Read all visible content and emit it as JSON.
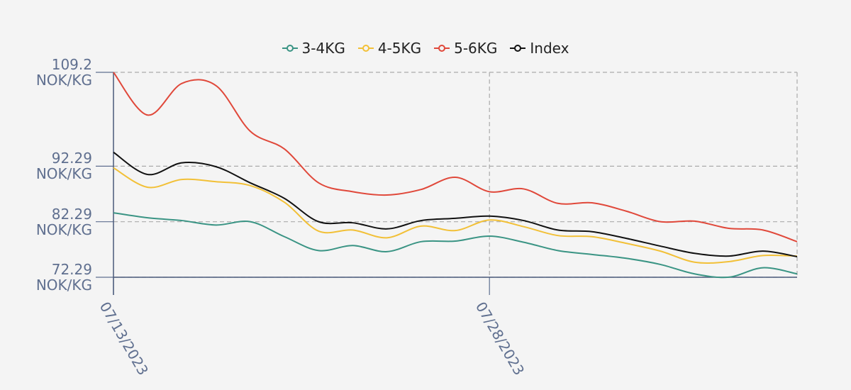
{
  "chart_data": {
    "type": "line",
    "categories": [
      "07/13/2023",
      null,
      null,
      null,
      null,
      null,
      null,
      null,
      null,
      null,
      null,
      "07/28/2023",
      null,
      null,
      null,
      null,
      null,
      null,
      null,
      null,
      null
    ],
    "series": [
      {
        "name": "3-4KG",
        "color": "#3a9484",
        "values": [
          83.9,
          83.0,
          82.5,
          81.7,
          82.3,
          79.6,
          77.1,
          78.0,
          76.9,
          78.7,
          78.8,
          79.7,
          78.6,
          77.1,
          76.4,
          75.7,
          74.6,
          72.9,
          72.3,
          74.0,
          72.9
        ]
      },
      {
        "name": "4-5KG",
        "color": "#f2c037",
        "values": [
          92.0,
          88.5,
          89.9,
          89.5,
          88.8,
          85.8,
          80.6,
          80.8,
          79.4,
          81.5,
          80.7,
          82.6,
          81.4,
          79.8,
          79.6,
          78.4,
          77.0,
          75.0,
          75.1,
          76.2,
          76.1
        ]
      },
      {
        "name": "5-6KG",
        "color": "#e0483a",
        "values": [
          109.2,
          101.5,
          107.2,
          106.8,
          98.6,
          95.4,
          89.3,
          87.7,
          87.1,
          88.1,
          90.3,
          87.7,
          88.2,
          85.6,
          85.7,
          84.2,
          82.3,
          82.4,
          81.1,
          80.8,
          78.7
        ]
      },
      {
        "name": "Index",
        "color": "#111111",
        "values": [
          94.8,
          90.8,
          92.9,
          92.2,
          89.3,
          86.5,
          82.3,
          82.1,
          81.0,
          82.5,
          82.9,
          83.3,
          82.5,
          80.8,
          80.5,
          79.3,
          77.9,
          76.6,
          76.1,
          77.0,
          76.0
        ]
      }
    ],
    "ylim": [
      72.29,
      109.2
    ],
    "yticks": [
      {
        "value": 72.29,
        "label": "72.29 NOK/KG"
      },
      {
        "value": 82.29,
        "label": "82.29 NOK/KG"
      },
      {
        "value": 92.29,
        "label": "92.29 NOK/KG"
      },
      {
        "value": 109.2,
        "label": "109.2 NOK/KG"
      }
    ],
    "grid": true,
    "legend": "top"
  }
}
